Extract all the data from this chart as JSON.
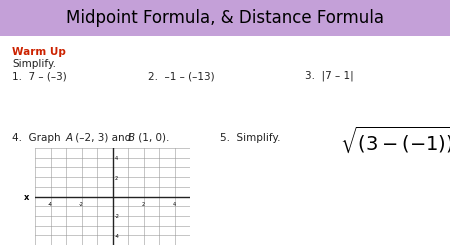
{
  "title": "Midpoint Formula, & Distance Formula",
  "title_bg": "#c4a0d8",
  "title_fontsize": 12,
  "bg_color": "#ffffff",
  "warm_up_color": "#cc2200",
  "warm_up_text": "Warm Up",
  "simplify_text": "Simplify.",
  "q1": "1.  7 – (–3)",
  "q2": "2.  –1 – (–13)",
  "q3": "3.  |7 – 1|",
  "q4_pre": "4.  Graph ",
  "q4_A": "A",
  "q4_mid": " (–2, 3) and ",
  "q4_B": "B",
  "q4_post": " (1, 0).",
  "q5": "5.  Simplify.",
  "grid_color": "#999999",
  "axis_color": "#222222",
  "text_color": "#222222",
  "grid_n": 5,
  "grid_ticks": [
    -4,
    -2,
    2,
    4
  ],
  "grid_yticks": [
    -4,
    -2,
    2,
    4
  ]
}
